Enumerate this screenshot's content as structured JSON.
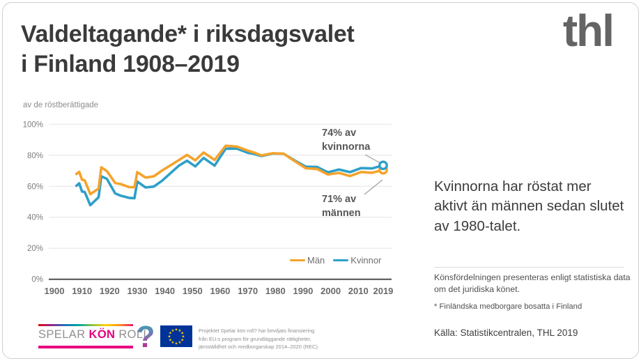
{
  "header": {
    "title_line1": "Valdeltagande* i riksdagsvalet",
    "title_line2": "i Finland 1908–2019",
    "logo_text": "thl"
  },
  "chart_data": {
    "type": "line",
    "title": "Valdeltagande* i riksdagsvalet i Finland 1908–2019",
    "ylabel": "av de röstberättigade",
    "xlabel": "",
    "ylim": [
      0,
      100
    ],
    "grid": true,
    "legend_position": "bottom-right",
    "y_ticks": [
      "100%",
      "80%",
      "60%",
      "40%",
      "20%",
      "0%"
    ],
    "x_ticks": [
      "1900",
      "1910",
      "1920",
      "1930",
      "1940",
      "1950",
      "1960",
      "1970",
      "1980",
      "1990",
      "2000",
      "2010",
      "2019"
    ],
    "x": [
      1908,
      1909,
      1910,
      1911,
      1913,
      1916,
      1917,
      1919,
      1922,
      1924,
      1927,
      1929,
      1930,
      1933,
      1936,
      1939,
      1945,
      1948,
      1951,
      1954,
      1958,
      1962,
      1966,
      1970,
      1972,
      1975,
      1979,
      1983,
      1987,
      1991,
      1995,
      1999,
      2003,
      2007,
      2011,
      2015,
      2019
    ],
    "series": [
      {
        "name": "Män",
        "color": "#F5A32B",
        "values": [
          67.9,
          69.3,
          64.2,
          63.8,
          54.9,
          58.5,
          72.2,
          69.8,
          62.1,
          61.4,
          59.5,
          59.4,
          69.1,
          65.6,
          66.4,
          70.2,
          76.8,
          80.2,
          76.7,
          81.8,
          77.0,
          86.1,
          85.6,
          83.0,
          81.9,
          79.9,
          81.3,
          81.0,
          76.2,
          71.6,
          71.2,
          67.6,
          68.6,
          66.6,
          69.2,
          68.7,
          70.6
        ]
      },
      {
        "name": "Kvinnor",
        "color": "#2E9FC9",
        "values": [
          60.3,
          61.9,
          56.6,
          56.3,
          47.8,
          52.9,
          66.4,
          64.8,
          55.4,
          53.9,
          52.5,
          52.3,
          63.1,
          59.2,
          59.8,
          63.6,
          73.2,
          76.5,
          72.8,
          78.3,
          73.3,
          84.2,
          84.3,
          81.6,
          81.0,
          79.5,
          81.1,
          81.0,
          76.6,
          72.6,
          72.5,
          69.0,
          70.8,
          69.1,
          71.7,
          71.5,
          73.5
        ]
      }
    ],
    "annotations": {
      "women": "74% av\nkvinnorna",
      "men": "71% av\nmännen"
    }
  },
  "sidebar": {
    "highlight": "Kvinnorna har röstat mer aktivt än männen sedan slutet av 1980-talet.",
    "gender_note": "Könsfördelningen presenteras enligt statistiska data om det juridiska könet.",
    "footnote": "* Finländska medborgare bosatta i Finland",
    "source": "Källa: Statistikcentralen, THL 2019"
  },
  "footer": {
    "skr_logo": {
      "word1": "SPELAR",
      "word2": "KÖN",
      "word3": "ROLL",
      "qmark": "?"
    },
    "eu_text_lines": [
      "Projektet Spelar kön roll? har beviljats finansiering",
      "från EU:s program för grundläggande rättigheter,",
      "jämställdhet och medborgarskap 2014–2020 (REC)."
    ]
  },
  "colors": {
    "men": "#F5A32B",
    "women": "#2E9FC9",
    "magenta": "#E6007E",
    "eu_blue": "#003399",
    "eu_star": "#FFCC00"
  }
}
